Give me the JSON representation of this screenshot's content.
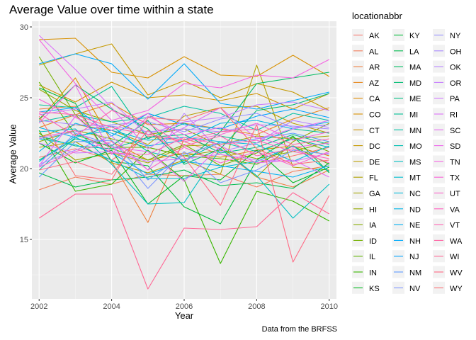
{
  "chart_data": {
    "type": "line",
    "title": "Average Value over time within a state",
    "xlabel": "Year",
    "ylabel": "Average Value",
    "caption": "Data from the BRFSS",
    "legend_title": "locationabbr",
    "legend_position": "right",
    "grid": true,
    "xlim": [
      2001.8,
      2010.2
    ],
    "ylim": [
      10.8,
      30.4
    ],
    "x_ticks": [
      2002,
      2004,
      2006,
      2008,
      2010
    ],
    "y_ticks": [
      15,
      20,
      25,
      30
    ],
    "x": [
      2002,
      2003,
      2004,
      2005,
      2006,
      2007,
      2008,
      2009,
      2010
    ],
    "series": [
      {
        "name": "AK",
        "color": "#F8766D",
        "values": [
          20.8,
          21.4,
          20.6,
          22.3,
          21.9,
          21.0,
          20.4,
          20.9,
          21.5
        ]
      },
      {
        "name": "AL",
        "color": "#F37B59",
        "values": [
          18.5,
          19.4,
          18.9,
          19.6,
          19.5,
          19.6,
          18.7,
          19.8,
          20.2
        ]
      },
      {
        "name": "AR",
        "color": "#ED8141",
        "values": [
          24.2,
          24.4,
          20.5,
          16.2,
          22.1,
          21.4,
          19.4,
          18.7,
          19.9
        ]
      },
      {
        "name": "AZ",
        "color": "#E7861B",
        "values": [
          22.9,
          23.8,
          24.6,
          23.1,
          23.2,
          22.8,
          22.4,
          23.5,
          24.3
        ]
      },
      {
        "name": "CA",
        "color": "#DF8C00",
        "values": [
          23.4,
          26.4,
          21.9,
          20.6,
          21.1,
          20.8,
          21.3,
          21.6,
          20.9
        ]
      },
      {
        "name": "CO",
        "color": "#D89000",
        "values": [
          29.1,
          29.2,
          26.8,
          26.4,
          27.9,
          26.6,
          26.5,
          28.0,
          26.5
        ]
      },
      {
        "name": "CT",
        "color": "#CF9400",
        "values": [
          25.9,
          24.7,
          26.1,
          25.0,
          25.2,
          24.8,
          25.3,
          24.2,
          25.3
        ]
      },
      {
        "name": "DC",
        "color": "#C59900",
        "values": [
          27.3,
          28.1,
          28.8,
          25.2,
          26.2,
          25.0,
          26.0,
          25.4,
          24.1
        ]
      },
      {
        "name": "DE",
        "color": "#BB9D00",
        "values": [
          22.2,
          23.1,
          22.7,
          21.7,
          23.7,
          24.3,
          24.4,
          23.2,
          22.5
        ]
      },
      {
        "name": "FL",
        "color": "#B0A100",
        "values": [
          21.5,
          21.9,
          20.4,
          19.7,
          20.6,
          19.6,
          27.3,
          20.1,
          19.9
        ]
      },
      {
        "name": "GA",
        "color": "#A3A500",
        "values": [
          22.5,
          20.6,
          21.1,
          20.4,
          21.6,
          21.7,
          22.3,
          22.1,
          22.3
        ]
      },
      {
        "name": "HI",
        "color": "#96A900",
        "values": [
          25.6,
          24.1,
          23.3,
          22.4,
          22.8,
          21.6,
          19.4,
          21.9,
          23.2
        ]
      },
      {
        "name": "IA",
        "color": "#86AC00",
        "values": [
          21.9,
          22.7,
          22.1,
          21.5,
          20.9,
          21.3,
          20.7,
          21.2,
          21.9
        ]
      },
      {
        "name": "ID",
        "color": "#74B000",
        "values": [
          27.9,
          23.8,
          21.4,
          20.6,
          21.7,
          20.2,
          21.1,
          22.2,
          21.2
        ]
      },
      {
        "name": "IL",
        "color": "#5EB300",
        "values": [
          26.1,
          22.4,
          21.5,
          21.5,
          20.9,
          20.7,
          20.3,
          21.6,
          20.3
        ]
      },
      {
        "name": "IN",
        "color": "#39B600",
        "values": [
          22.7,
          18.4,
          18.9,
          21.3,
          19.2,
          13.3,
          18.4,
          17.7,
          16.3
        ]
      },
      {
        "name": "KS",
        "color": "#00B81F",
        "values": [
          21.8,
          20.4,
          21.3,
          17.5,
          19.5,
          19.2,
          21.3,
          19.0,
          20.1
        ]
      },
      {
        "name": "KY",
        "color": "#00BA38",
        "values": [
          25.7,
          24.6,
          20.5,
          20.2,
          17.3,
          16.1,
          20.6,
          22.3,
          19.7
        ]
      },
      {
        "name": "LA",
        "color": "#00BB4E",
        "values": [
          19.7,
          18.7,
          19.2,
          19.4,
          19.9,
          18.8,
          19.0,
          18.6,
          20.4
        ]
      },
      {
        "name": "MA",
        "color": "#00BC61",
        "values": [
          23.5,
          25.9,
          24.2,
          22.8,
          20.4,
          22.6,
          26.0,
          26.4,
          26.8
        ]
      },
      {
        "name": "MD",
        "color": "#00BD73",
        "values": [
          20.6,
          22.1,
          21.6,
          23.4,
          20.3,
          21.4,
          24.1,
          24.5,
          25.3
        ]
      },
      {
        "name": "ME",
        "color": "#00BF83",
        "values": [
          22.3,
          21.6,
          21.4,
          22.2,
          22.4,
          21.1,
          21.5,
          22.4,
          21.7
        ]
      },
      {
        "name": "MI",
        "color": "#00C094",
        "values": [
          24.5,
          24.3,
          25.8,
          22.1,
          23.2,
          22.3,
          21.8,
          22.8,
          22.5
        ]
      },
      {
        "name": "MN",
        "color": "#00C0A4",
        "values": [
          23.3,
          23.8,
          23.3,
          23.6,
          24.4,
          23.9,
          22.7,
          23.9,
          23.4
        ]
      },
      {
        "name": "MO",
        "color": "#00C0B3",
        "values": [
          19.9,
          22.2,
          23.0,
          21.2,
          20.6,
          21.9,
          21.2,
          22.1,
          21.5
        ]
      },
      {
        "name": "MS",
        "color": "#00BFC2",
        "values": [
          22.6,
          22.8,
          20.3,
          17.5,
          17.6,
          21.4,
          19.5,
          16.5,
          18.9
        ]
      },
      {
        "name": "MT",
        "color": "#00BDD0",
        "values": [
          22.1,
          21.7,
          20.6,
          19.3,
          19.3,
          20.1,
          20.5,
          21.6,
          19.8
        ]
      },
      {
        "name": "NC",
        "color": "#00BADC",
        "values": [
          20.5,
          22.3,
          22.7,
          22.0,
          22.2,
          21.9,
          21.7,
          20.5,
          21.6
        ]
      },
      {
        "name": "ND",
        "color": "#00B5E8",
        "values": [
          21.2,
          23.2,
          22.5,
          21.6,
          22.0,
          23.2,
          23.4,
          22.8,
          23.3
        ]
      },
      {
        "name": "NE",
        "color": "#00B0F2",
        "values": [
          22.9,
          22.2,
          21.1,
          19.6,
          20.5,
          20.2,
          19.8,
          19.4,
          20.2
        ]
      },
      {
        "name": "NH",
        "color": "#00AAFA",
        "values": [
          27.4,
          28.1,
          27.4,
          24.9,
          27.4,
          24.6,
          24.2,
          24.8,
          25.4
        ]
      },
      {
        "name": "NJ",
        "color": "#00A2FF",
        "values": [
          24.0,
          24.3,
          22.3,
          23.9,
          23.1,
          22.8,
          23.7,
          24.2,
          23.6
        ]
      },
      {
        "name": "NM",
        "color": "#619CFF",
        "values": [
          19.4,
          21.9,
          22.0,
          19.2,
          21.0,
          21.8,
          22.1,
          22.5,
          21.9
        ]
      },
      {
        "name": "NV",
        "color": "#7E96FF",
        "values": [
          20.1,
          22.5,
          21.7,
          18.6,
          21.2,
          19.0,
          19.9,
          21.3,
          21.0
        ]
      },
      {
        "name": "NY",
        "color": "#948FFF",
        "values": [
          22.1,
          22.6,
          23.1,
          23.3,
          22.6,
          23.5,
          23.9,
          22.9,
          23.1
        ]
      },
      {
        "name": "OH",
        "color": "#A789FF",
        "values": [
          23.4,
          23.1,
          23.0,
          22.6,
          22.8,
          22.6,
          23.1,
          23.0,
          22.8
        ]
      },
      {
        "name": "OK",
        "color": "#B783FF",
        "values": [
          20.3,
          21.3,
          22.3,
          19.9,
          23.9,
          21.2,
          21.8,
          23.4,
          22.9
        ]
      },
      {
        "name": "OR",
        "color": "#C67CFF",
        "values": [
          23.8,
          24.2,
          24.7,
          22.4,
          23.3,
          23.6,
          24.5,
          24.7,
          24.1
        ]
      },
      {
        "name": "PA",
        "color": "#D277FF",
        "values": [
          21.8,
          21.1,
          21.2,
          20.5,
          20.7,
          21.0,
          20.6,
          20.5,
          21.1
        ]
      },
      {
        "name": "RI",
        "color": "#DC71FA",
        "values": [
          29.4,
          27.0,
          24.3,
          21.4,
          22.9,
          24.3,
          22.1,
          22.8,
          23.4
        ]
      },
      {
        "name": "SC",
        "color": "#E66CF3",
        "values": [
          20.2,
          23.7,
          21.5,
          21.2,
          19.1,
          21.6,
          20.4,
          20.6,
          19.4
        ]
      },
      {
        "name": "SD",
        "color": "#EE67EB",
        "values": [
          23.2,
          25.9,
          21.0,
          23.7,
          22.4,
          22.9,
          22.2,
          21.5,
          21.8
        ]
      },
      {
        "name": "TN",
        "color": "#F464E2",
        "values": [
          29.1,
          26.0,
          23.4,
          24.1,
          26.0,
          25.7,
          26.6,
          26.4,
          27.7
        ]
      },
      {
        "name": "TX",
        "color": "#F962D7",
        "values": [
          24.9,
          23.6,
          22.7,
          23.9,
          21.9,
          22.4,
          23.2,
          22.0,
          22.6
        ]
      },
      {
        "name": "UT",
        "color": "#FC61CC",
        "values": [
          20.1,
          21.2,
          21.9,
          19.9,
          21.5,
          20.4,
          21.2,
          20.2,
          21.2
        ]
      },
      {
        "name": "VA",
        "color": "#FF61C0",
        "values": [
          22.2,
          22.7,
          21.1,
          21.0,
          22.2,
          21.7,
          22.0,
          21.2,
          20.7
        ]
      },
      {
        "name": "VT",
        "color": "#FF62B3",
        "values": [
          23.9,
          22.3,
          24.1,
          23.2,
          21.6,
          22.3,
          20.9,
          21.4,
          20.4
        ]
      },
      {
        "name": "WA",
        "color": "#FF64A4",
        "values": [
          24.0,
          23.8,
          22.9,
          22.4,
          22.0,
          22.6,
          22.8,
          21.7,
          22.1
        ]
      },
      {
        "name": "WI",
        "color": "#FF6795",
        "values": [
          16.5,
          18.2,
          18.2,
          11.5,
          15.8,
          15.7,
          15.9,
          18.3,
          16.8
        ]
      },
      {
        "name": "WV",
        "color": "#FF6A84",
        "values": [
          19.9,
          20.5,
          19.6,
          22.7,
          20.8,
          17.4,
          23.1,
          13.4,
          18.1
        ]
      },
      {
        "name": "WY",
        "color": "#FC6E72",
        "values": [
          23.7,
          19.5,
          19.2,
          23.6,
          23.4,
          24.3,
          21.4,
          20.3,
          20.6
        ]
      }
    ]
  }
}
